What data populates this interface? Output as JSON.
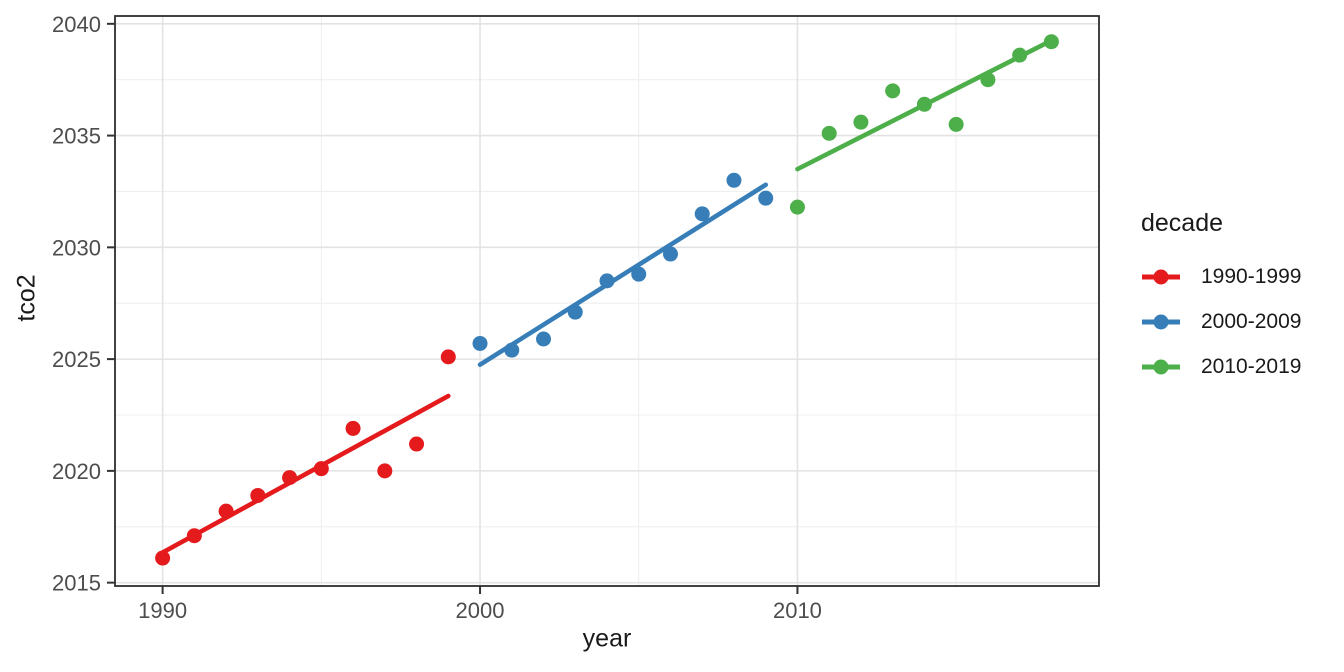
{
  "chart_data": {
    "type": "scatter",
    "title": "",
    "xlabel": "year",
    "ylabel": "tco2",
    "xlim": [
      1988.5,
      2019.5
    ],
    "ylim": [
      2014.85,
      2040.35
    ],
    "x_ticks": [
      1990,
      2000,
      2010
    ],
    "y_ticks": [
      2015,
      2020,
      2025,
      2030,
      2035,
      2040
    ],
    "x_minor_gridlines": [
      1995,
      2005,
      2015
    ],
    "y_minor_gridlines": [
      2017.5,
      2022.5,
      2027.5,
      2032.5,
      2037.5
    ],
    "grid": true,
    "legend": {
      "title": "decade",
      "position": "right"
    },
    "series": [
      {
        "name": "1990-1999",
        "color": "#e41a1c",
        "x": [
          1990,
          1991,
          1992,
          1993,
          1994,
          1995,
          1996,
          1997,
          1998,
          1999
        ],
        "y": [
          2016.1,
          2017.1,
          2018.2,
          2018.9,
          2019.7,
          2020.1,
          2021.9,
          2020.0,
          2021.2,
          2025.1
        ],
        "trend": {
          "x1": 1990,
          "y1": 2016.35,
          "x2": 1999,
          "y2": 2023.35
        }
      },
      {
        "name": "2000-2009",
        "color": "#377eb8",
        "x": [
          2000,
          2001,
          2002,
          2003,
          2004,
          2005,
          2006,
          2007,
          2008,
          2009
        ],
        "y": [
          2025.7,
          2025.4,
          2025.9,
          2027.1,
          2028.5,
          2028.8,
          2029.7,
          2031.5,
          2033.0,
          2032.2
        ],
        "trend": {
          "x1": 2000,
          "y1": 2024.75,
          "x2": 2009,
          "y2": 2032.8
        }
      },
      {
        "name": "2010-2019",
        "color": "#4daf4a",
        "x": [
          2010,
          2011,
          2012,
          2013,
          2014,
          2015,
          2016,
          2017,
          2018
        ],
        "y": [
          2031.8,
          2035.1,
          2035.6,
          2037.0,
          2036.4,
          2035.5,
          2037.5,
          2038.6,
          2039.2
        ],
        "trend": {
          "x1": 2010,
          "y1": 2033.5,
          "x2": 2018,
          "y2": 2039.25
        }
      }
    ],
    "style": {
      "background": "#ffffff",
      "panel_background": "#ffffff",
      "panel_border": "#2e2e2e",
      "grid_major": "#e3e3e3",
      "grid_minor": "#efefef",
      "tick_color": "#333333",
      "tick_label_color": "#4d4d4d",
      "axis_title_color": "#1a1a1a",
      "point_radius": 7.5,
      "trend_width": 4.6
    }
  }
}
